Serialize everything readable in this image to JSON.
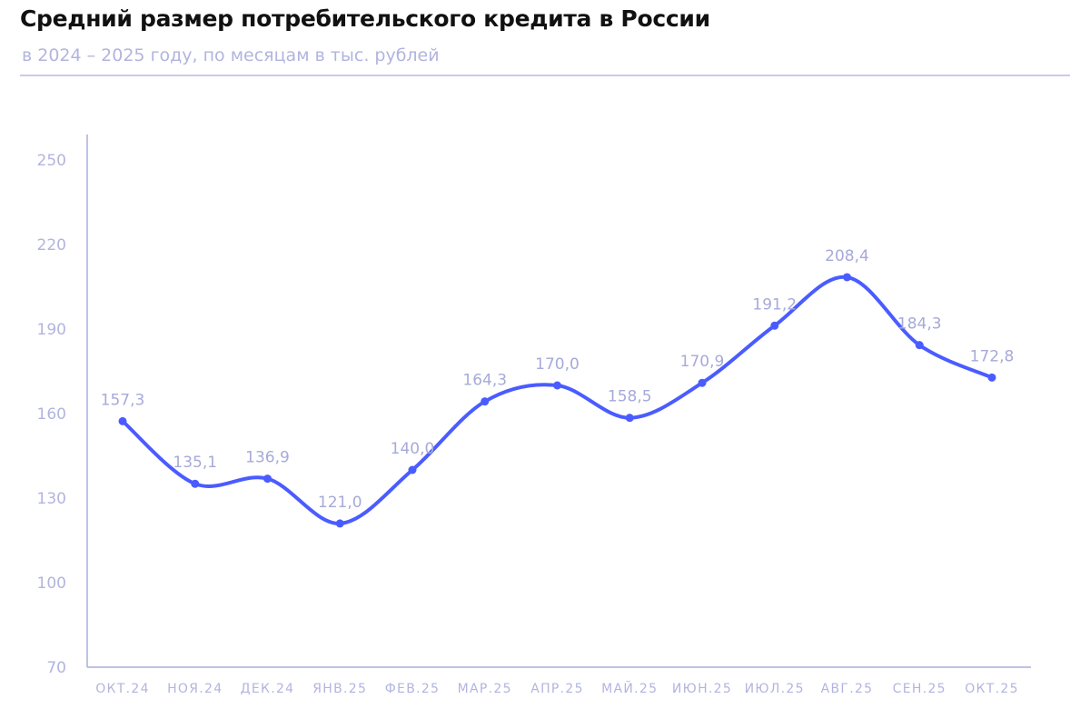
{
  "title": "Средний размер потребительского кредита в России",
  "subtitle": "в 2024 – 2025 году, по месяцам в тыс. рублей",
  "chart_data": {
    "type": "line",
    "title": "Средний размер потребительского кредита в России",
    "subtitle": "в 2024 – 2025 году, по месяцам в тыс. рублей",
    "categories": [
      "ОКТ.24",
      "НОЯ.24",
      "ДЕК.24",
      "ЯНВ.25",
      "ФЕВ.25",
      "МАР.25",
      "АПР.25",
      "МАЙ.25",
      "ИЮН.25",
      "ИЮЛ.25",
      "АВГ.25",
      "СЕН.25",
      "ОКТ.25"
    ],
    "values": [
      157.3,
      135.1,
      136.9,
      121.0,
      140.0,
      164.3,
      170.0,
      158.5,
      170.9,
      191.2,
      208.4,
      184.3,
      172.8
    ],
    "data_labels": [
      "157,3",
      "135,1",
      "136,9",
      "121,0",
      "140,0",
      "164,3",
      "170,0",
      "158,5",
      "170,9",
      "191,2",
      "208,4",
      "184,3",
      "172,8"
    ],
    "ylim": [
      70,
      250
    ],
    "yticks": [
      70,
      100,
      130,
      160,
      190,
      220,
      250
    ],
    "grid": false,
    "smooth": true,
    "colors": {
      "line": "#4a5cff",
      "axis": "#a9addb",
      "labels": "#b1b5de"
    }
  }
}
